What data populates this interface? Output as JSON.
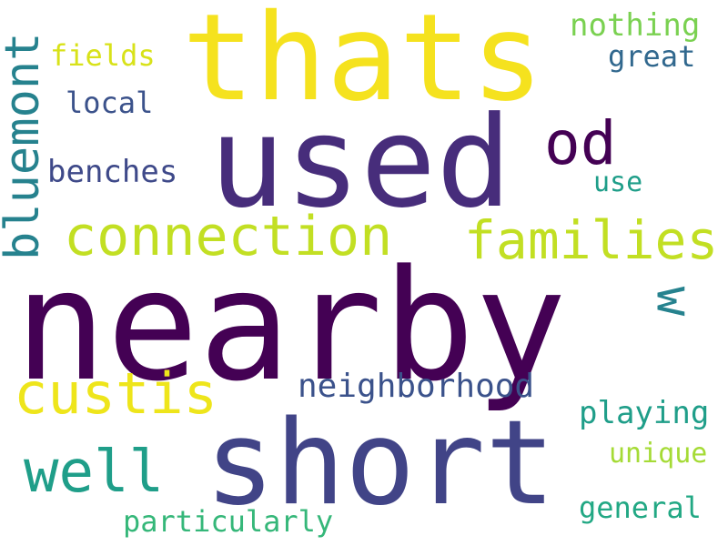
{
  "words": [
    {
      "text": "nearby",
      "color": "#440154"
    },
    {
      "text": "short",
      "color": "#414487"
    },
    {
      "text": "used",
      "color": "#472d7b"
    },
    {
      "text": "thats",
      "color": "#f5e21e"
    },
    {
      "text": "connection",
      "color": "#c2df23"
    },
    {
      "text": "families",
      "color": "#c2df23"
    },
    {
      "text": "custis",
      "color": "#eee51b"
    },
    {
      "text": "well",
      "color": "#1f9e89"
    },
    {
      "text": "bluemont",
      "color": "#26828e"
    },
    {
      "text": "od",
      "color": "#440154"
    },
    {
      "text": "w",
      "color": "#26828e"
    },
    {
      "text": "neighborhood",
      "color": "#3b528b"
    },
    {
      "text": "benches",
      "color": "#3e4989"
    },
    {
      "text": "playing",
      "color": "#1f9e89"
    },
    {
      "text": "fields",
      "color": "#d8e219"
    },
    {
      "text": "local",
      "color": "#3b528b"
    },
    {
      "text": "nothing",
      "color": "#7ad151"
    },
    {
      "text": "great",
      "color": "#31688e"
    },
    {
      "text": "use",
      "color": "#1f9e89"
    },
    {
      "text": "unique",
      "color": "#a5db36"
    },
    {
      "text": "general",
      "color": "#22a884"
    },
    {
      "text": "particularly",
      "color": "#35b779"
    }
  ]
}
